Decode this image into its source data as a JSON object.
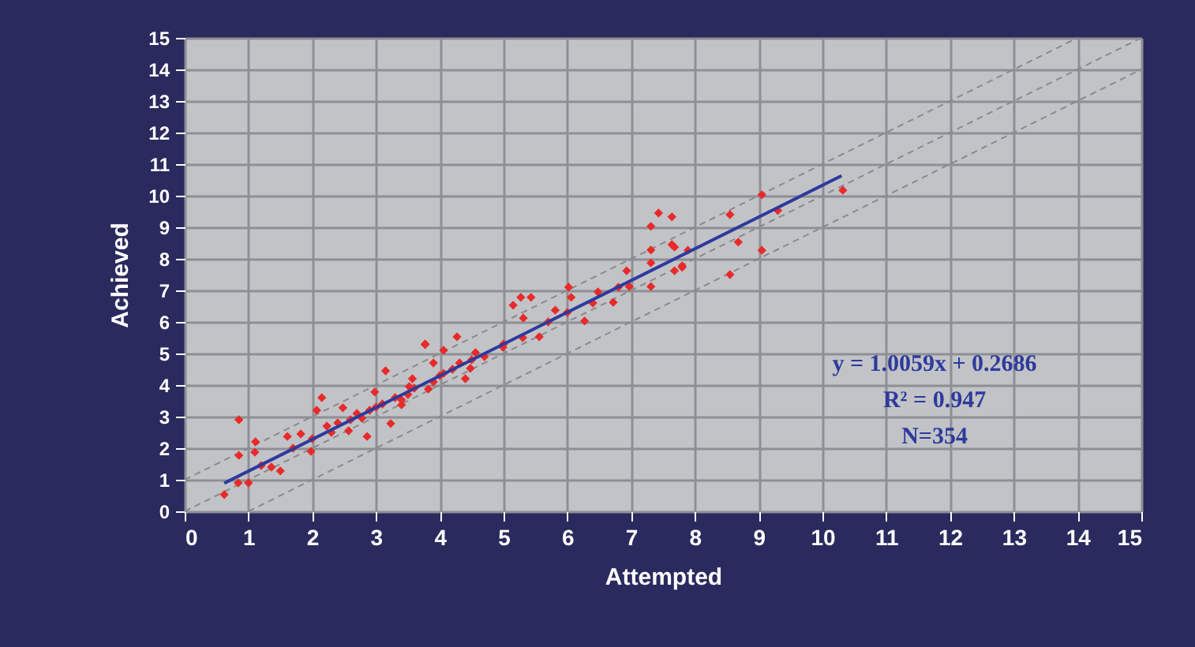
{
  "chart_data": {
    "type": "scatter",
    "xlabel": "Attempted",
    "ylabel": "Achieved",
    "xlim": [
      0,
      15
    ],
    "ylim": [
      0,
      15
    ],
    "xticks": [
      0,
      1,
      2,
      3,
      4,
      5,
      6,
      7,
      8,
      9,
      10,
      11,
      12,
      13,
      14,
      15
    ],
    "yticks": [
      0,
      1,
      2,
      3,
      4,
      5,
      6,
      7,
      8,
      9,
      10,
      11,
      12,
      13,
      14,
      15
    ],
    "grid": true,
    "annotations": [
      "y = 1.0059x + 0.2686",
      "R² = 0.947",
      "N=354"
    ],
    "series": [
      {
        "color": "#e82a2a",
        "marker": "diamond",
        "x": [
          0.62,
          0.85,
          0.85,
          0.84,
          1.0,
          1.11,
          1.1,
          1.2,
          1.36,
          1.5,
          1.61,
          1.82,
          1.98,
          2.07,
          2.15,
          2.23,
          2.48,
          2.57,
          2.78,
          2.86,
          2.98,
          3.15,
          3.23,
          3.4,
          3.52,
          3.77,
          3.9,
          4.06,
          4.27,
          4.4,
          4.48,
          3.77,
          5.27,
          5.43,
          5.15,
          5.31,
          5.81,
          6.02,
          6.06,
          6.27,
          6.48,
          6.72,
          6.93,
          6.97,
          7.31,
          7.43,
          7.64,
          7.31,
          7.64,
          7.31,
          7.31,
          7.68,
          7.8,
          4.99,
          5.56,
          4.56,
          4.31,
          4.06,
          3.82,
          3.57,
          3.4,
          8.55,
          9.05,
          9.3,
          8.68,
          9.05,
          8.55,
          10.32,
          7.89,
          7.8,
          7.68,
          1.7,
          2.0,
          2.3,
          2.6,
          2.9,
          3.1,
          3.3,
          3.6,
          3.9,
          4.2,
          4.7,
          5.0,
          5.3,
          5.7,
          6.0,
          6.4,
          6.8,
          2.4,
          2.7,
          3.0,
          3.5,
          4.0,
          4.5
        ],
        "values": [
          0.53,
          2.9,
          1.77,
          0.9,
          0.9,
          2.2,
          1.87,
          1.45,
          1.4,
          1.28,
          2.37,
          2.45,
          1.9,
          3.2,
          3.6,
          2.7,
          3.28,
          2.55,
          2.95,
          2.37,
          3.78,
          4.45,
          2.78,
          3.37,
          3.95,
          5.28,
          4.7,
          5.1,
          5.53,
          4.2,
          4.53,
          5.3,
          6.78,
          6.78,
          6.53,
          6.12,
          6.37,
          7.1,
          6.78,
          6.03,
          6.95,
          6.62,
          7.62,
          7.12,
          9.03,
          9.45,
          9.33,
          8.28,
          8.45,
          7.87,
          7.12,
          7.62,
          7.73,
          5.2,
          5.53,
          5.03,
          4.7,
          4.37,
          3.87,
          4.2,
          3.53,
          9.4,
          10.03,
          9.53,
          8.53,
          8.27,
          7.5,
          10.17,
          8.27,
          7.78,
          8.37,
          2.0,
          2.3,
          2.5,
          2.9,
          3.2,
          3.4,
          3.6,
          3.9,
          4.1,
          4.5,
          4.9,
          5.3,
          5.5,
          6.0,
          6.3,
          6.6,
          7.1,
          2.8,
          3.1,
          3.3,
          3.7,
          4.3,
          4.8
        ]
      },
      {
        "type": "line",
        "color": "#2e3a9c",
        "line_style": "solid",
        "x": [
          0.62,
          10.3
        ],
        "values": [
          0.89,
          10.63
        ]
      },
      {
        "type": "line",
        "color": "#8a8a8a",
        "line_style": "dashed",
        "x": [
          0,
          14
        ],
        "values": [
          1,
          15
        ]
      },
      {
        "type": "line",
        "color": "#8a8a8a",
        "line_style": "dashed",
        "x": [
          0,
          15
        ],
        "values": [
          0,
          15
        ]
      },
      {
        "type": "line",
        "color": "#8a8a8a",
        "line_style": "dashed",
        "x": [
          1,
          15
        ],
        "values": [
          0,
          14
        ]
      }
    ]
  }
}
